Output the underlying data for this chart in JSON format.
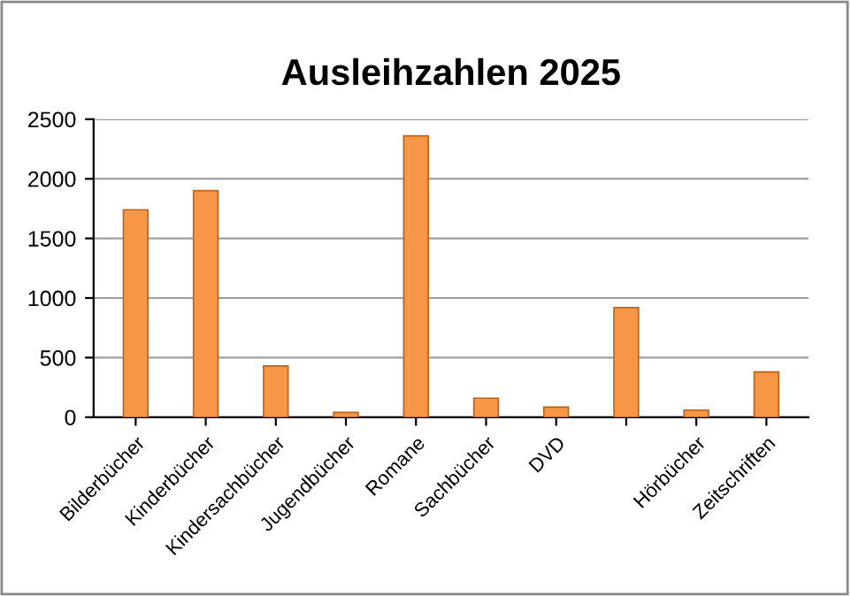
{
  "chart_data": {
    "type": "bar",
    "title": "Ausleihzahlen 2025",
    "categories": [
      "Bilderbücher",
      "Kinderbücher",
      "Kindersachbücher",
      "Jugendbücher",
      "Romane",
      "Sachbücher",
      "DVD",
      null,
      "Hörbücher",
      "Zeitschriften"
    ],
    "values": [
      1740,
      1900,
      430,
      40,
      2360,
      160,
      85,
      920,
      60,
      380
    ],
    "color": "#f79646",
    "ylim": [
      0,
      2500
    ],
    "yticks": [
      0,
      500,
      1000,
      1500,
      2000,
      2500
    ],
    "grid": "y",
    "legend": false
  }
}
